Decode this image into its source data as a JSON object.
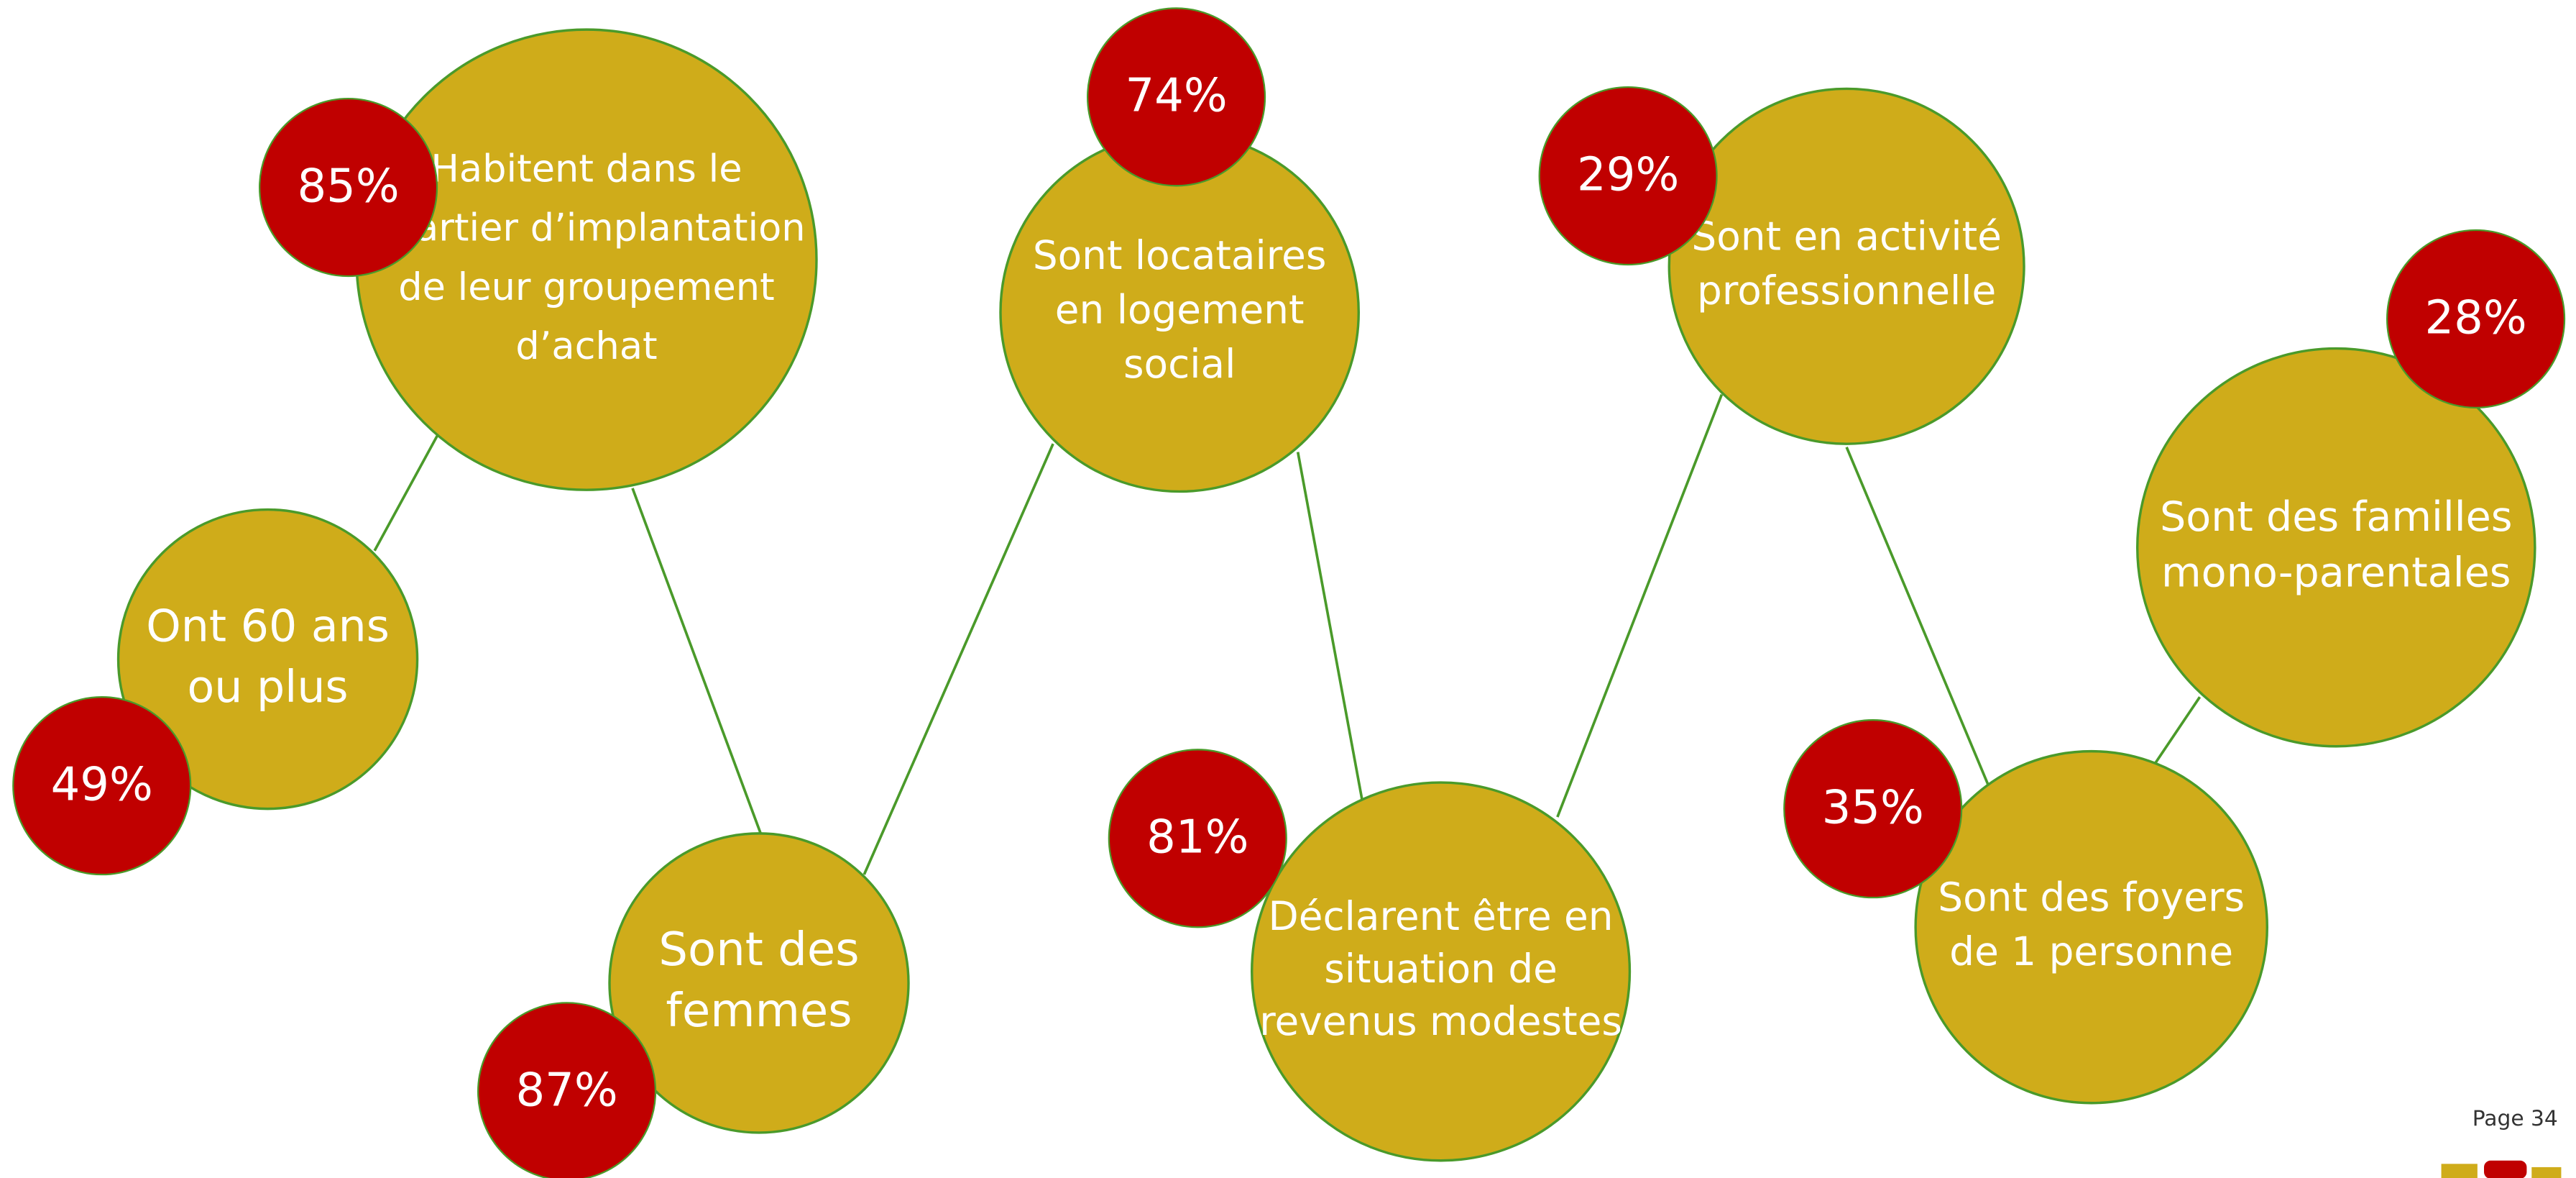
{
  "nodes": [
    {
      "lines": [
        "Ont 60 ans",
        "ou plus"
      ],
      "pct": "49%"
    },
    {
      "lines": [
        "Habitent dans le",
        "quartier d’implantation",
        "de leur groupement",
        "d’achat"
      ],
      "pct": "85%"
    },
    {
      "lines": [
        "Sont des",
        "femmes"
      ],
      "pct": "87%"
    },
    {
      "lines": [
        "Sont locataires",
        "en logement",
        "social"
      ],
      "pct": "74%"
    },
    {
      "lines": [
        "Déclarent être en",
        "situation de",
        "revenus modestes"
      ],
      "pct": "81%"
    },
    {
      "lines": [
        "Sont en activité",
        "professionnelle"
      ],
      "pct": "29%"
    },
    {
      "lines": [
        "Sont des foyers",
        "de 1 personne"
      ],
      "pct": "35%"
    },
    {
      "lines": [
        "Sont des familles",
        "mono-parentales"
      ],
      "pct": "28%"
    }
  ],
  "footer": {
    "page": "Page 34"
  }
}
